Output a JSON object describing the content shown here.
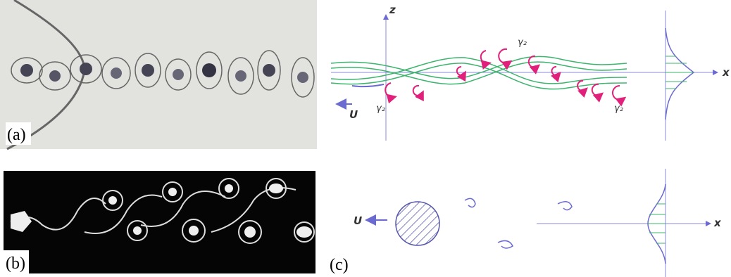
{
  "panels": {
    "a": {
      "label": "(a)"
    },
    "b": {
      "label": "(b)"
    },
    "c": {
      "label": "(c)",
      "top": {
        "z_axis": "z",
        "x_axis": "x",
        "velocity": "U",
        "gamma_labels": [
          "γ₂",
          "γ₂",
          "γ₂"
        ]
      },
      "bottom": {
        "velocity": "U",
        "x_axis": "x"
      }
    }
  }
}
